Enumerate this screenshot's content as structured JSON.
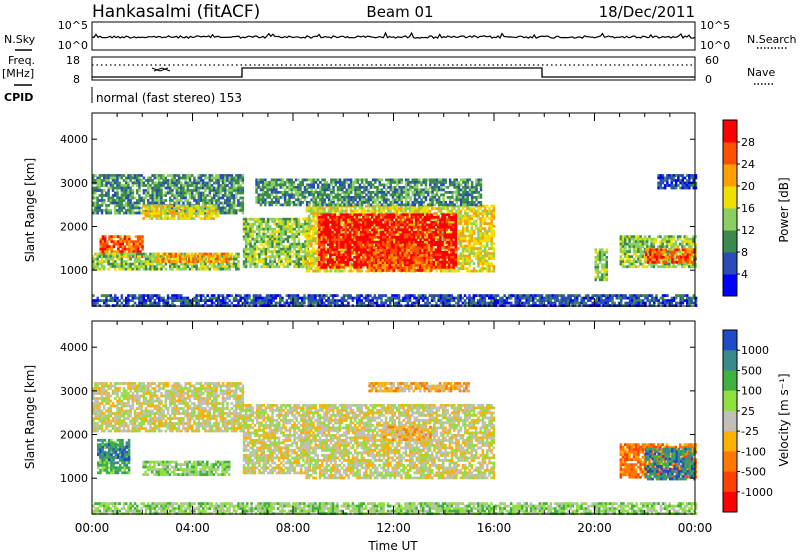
{
  "header": {
    "title": "Hankasalmi (fitACF)",
    "beam": "Beam 01",
    "date": "18/Dec/2011"
  },
  "noise_panel": {
    "left_label": "N.Sky",
    "right_label": "N.Search",
    "left_ticks": [
      "10^5",
      "10^0"
    ],
    "right_ticks": [
      "10^5",
      "10^0"
    ]
  },
  "freq_panel": {
    "left_label_1": "Freq.",
    "left_label_2": "[MHz]",
    "right_label": "Nave",
    "left_ticks": [
      "18",
      "8"
    ],
    "right_ticks": [
      "60",
      "0"
    ]
  },
  "cpid": {
    "label": "CPID",
    "mode_text": "normal (fast stereo) 153"
  },
  "chart_data": [
    {
      "type": "heatmap",
      "name": "power-panel",
      "ylabel": "Slant Range [km]",
      "ylim": [
        180,
        4600
      ],
      "yticks": [
        1000,
        2000,
        3000,
        4000
      ],
      "x_ticks": [
        "00:00",
        "04:00",
        "08:00",
        "12:00",
        "16:00",
        "20:00",
        "00:00"
      ],
      "colorbar": {
        "label": "Power [dB]",
        "ticks": [
          4,
          8,
          12,
          16,
          20,
          24,
          28
        ],
        "colors": [
          "#0000ff",
          "#2a4cb8",
          "#3a8a4a",
          "#8ad060",
          "#f0e000",
          "#ffa000",
          "#ff5000",
          "#ff0000"
        ]
      },
      "regions": [
        {
          "t0": 0.0,
          "t1": 6.0,
          "r0": 2300,
          "r1": 3200,
          "level": 2
        },
        {
          "t0": 2.0,
          "t1": 5.0,
          "r0": 2200,
          "r1": 2500,
          "level": 4
        },
        {
          "t0": 0.3,
          "t1": 2.0,
          "r0": 1300,
          "r1": 1800,
          "level": 6
        },
        {
          "t0": 0.0,
          "t1": 5.8,
          "r0": 1000,
          "r1": 1400,
          "level": 3
        },
        {
          "t0": 2.5,
          "t1": 5.5,
          "r0": 1200,
          "r1": 1400,
          "level": 5
        },
        {
          "t0": 6.0,
          "t1": 8.7,
          "r0": 1100,
          "r1": 2200,
          "level": 3
        },
        {
          "t0": 8.5,
          "t1": 16.0,
          "r0": 1000,
          "r1": 2500,
          "level": 4
        },
        {
          "t0": 9.0,
          "t1": 14.5,
          "r0": 1050,
          "r1": 2300,
          "level": 7
        },
        {
          "t0": 11.0,
          "t1": 13.5,
          "r0": 1000,
          "r1": 1600,
          "level": 6
        },
        {
          "t0": 6.5,
          "t1": 15.5,
          "r0": 2500,
          "r1": 3100,
          "level": 2
        },
        {
          "t0": 20.0,
          "t1": 20.5,
          "r0": 800,
          "r1": 1500,
          "level": 3
        },
        {
          "t0": 21.0,
          "t1": 24.0,
          "r0": 1100,
          "r1": 1800,
          "level": 3
        },
        {
          "t0": 22.0,
          "t1": 24.0,
          "r0": 1200,
          "r1": 1500,
          "level": 6
        },
        {
          "t0": 22.5,
          "t1": 24.0,
          "r0": 2900,
          "r1": 3200,
          "level": 1
        },
        {
          "t0": 0.0,
          "t1": 24.0,
          "r0": 180,
          "r1": 450,
          "level": 1
        }
      ]
    },
    {
      "type": "heatmap",
      "name": "velocity-panel",
      "ylabel": "Slant Range [km]",
      "xlabel": "Time UT",
      "ylim": [
        180,
        4600
      ],
      "yticks": [
        1000,
        2000,
        3000,
        4000
      ],
      "x_ticks": [
        "00:00",
        "04:00",
        "08:00",
        "12:00",
        "16:00",
        "20:00",
        "00:00"
      ],
      "colorbar": {
        "label": "Velocity [m s⁻¹]",
        "ticks": [
          "1000",
          "500",
          "100",
          "25",
          "-25",
          "-100",
          "-500",
          "-1000"
        ],
        "colors": [
          "#1e4cc8",
          "#3a8a8a",
          "#40b040",
          "#90e040",
          "#c0c0b8",
          "#ffb000",
          "#ff7800",
          "#ff4000",
          "#ff0000"
        ]
      },
      "regions": [
        {
          "t0": 0.0,
          "t1": 6.0,
          "r0": 2100,
          "r1": 3200,
          "level": 4
        },
        {
          "t0": 6.0,
          "t1": 8.7,
          "r0": 1100,
          "r1": 2700,
          "level": 4
        },
        {
          "t0": 8.5,
          "t1": 16.0,
          "r0": 1000,
          "r1": 2700,
          "level": 4
        },
        {
          "t0": 11.5,
          "t1": 13.5,
          "r0": 1900,
          "r1": 2200,
          "level": 5
        },
        {
          "t0": 0.2,
          "t1": 1.5,
          "r0": 1100,
          "r1": 1900,
          "level": 2
        },
        {
          "t0": 0.2,
          "t1": 1.5,
          "r0": 1400,
          "r1": 1800,
          "level": 1
        },
        {
          "t0": 2.0,
          "t1": 5.5,
          "r0": 1100,
          "r1": 1400,
          "level": 3
        },
        {
          "t0": 21.0,
          "t1": 24.0,
          "r0": 1000,
          "r1": 1800,
          "level": 6
        },
        {
          "t0": 22.0,
          "t1": 24.0,
          "r0": 1000,
          "r1": 1700,
          "level": 1
        },
        {
          "t0": 11.0,
          "t1": 15.0,
          "r0": 3000,
          "r1": 3200,
          "level": 5
        },
        {
          "t0": 0.0,
          "t1": 24.0,
          "r0": 180,
          "r1": 450,
          "level": 3
        }
      ]
    }
  ]
}
